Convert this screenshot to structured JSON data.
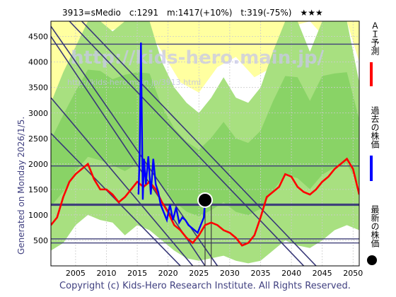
{
  "chart_data": {
    "type": "line",
    "title": "3913=sMedio　c:1291　m:1417(+10%)　t:319(-75%)　★★★",
    "side_note": "Generated on Monday 2026/1/5.",
    "copyright": "Copyright (c) Kids-Hero Research Institute. All Rights Reserved.",
    "watermark": "http://kids-hero.main.jp/",
    "watermark_small": "http://kids-hero.main.jp/3913.html",
    "xlim": [
      2001,
      2051
    ],
    "ylim": [
      0,
      4800
    ],
    "x_ticks": [
      "2005",
      "2010",
      "2015",
      "2020",
      "2025",
      "2030",
      "2035",
      "2040",
      "2045",
      "2050"
    ],
    "y_ticks": [
      "500",
      "1000",
      "1500",
      "2000",
      "2500",
      "3000",
      "3500",
      "4000",
      "4500"
    ],
    "current_point": {
      "x": 2026.0,
      "y": 1291
    },
    "horizontal_lines": [
      4350,
      1960,
      1200,
      530,
      450
    ],
    "diagonal_lines": [
      {
        "x1": 2001,
        "y1": 4700,
        "x2": 2028,
        "y2": 0
      },
      {
        "x1": 2001,
        "y1": 4500,
        "x2": 2026,
        "y2": 0
      },
      {
        "x1": 2004,
        "y1": 4800,
        "x2": 2042,
        "y2": 0
      },
      {
        "x1": 2006,
        "y1": 4800,
        "x2": 2044,
        "y2": 0
      },
      {
        "x1": 2001,
        "y1": 3300,
        "x2": 2024,
        "y2": 0
      },
      {
        "x1": 2001,
        "y1": 2600,
        "x2": 2022,
        "y2": 0
      }
    ],
    "vertical_lines": [
      2026.0,
      2027.0
    ],
    "series": [
      {
        "name": "ＡＩ予測",
        "color": "#ff0000",
        "x": [
          2001,
          2002,
          2003,
          2004,
          2005,
          2006,
          2007,
          2008,
          2009,
          2010,
          2011,
          2012,
          2013,
          2014,
          2015,
          2016,
          2017,
          2018,
          2019,
          2020,
          2021,
          2022,
          2023,
          2024,
          2025,
          2026,
          2027,
          2028,
          2029,
          2030,
          2031,
          2032,
          2033,
          2034,
          2035,
          2036,
          2037,
          2038,
          2039,
          2040,
          2041,
          2042,
          2043,
          2044,
          2045,
          2046,
          2047,
          2048,
          2049,
          2050,
          2051
        ],
        "y": [
          800,
          950,
          1350,
          1650,
          1800,
          1900,
          2000,
          1700,
          1500,
          1500,
          1400,
          1250,
          1350,
          1500,
          1650,
          1550,
          1650,
          1500,
          1250,
          1050,
          800,
          700,
          550,
          450,
          600,
          800,
          850,
          800,
          700,
          650,
          550,
          400,
          450,
          600,
          950,
          1350,
          1450,
          1550,
          1800,
          1750,
          1550,
          1450,
          1400,
          1500,
          1650,
          1750,
          1900,
          2000,
          2100,
          1900,
          1400
        ]
      },
      {
        "name": "過去の株価",
        "color": "#0000ff",
        "x": [
          2015.2,
          2015.4,
          2015.6,
          2015.9,
          2016.1,
          2016.4,
          2016.8,
          2017.2,
          2017.6,
          2018.0,
          2018.4,
          2018.8,
          2019.3,
          2019.8,
          2020.3,
          2020.8,
          2021.3,
          2021.8,
          2022.3,
          2022.8,
          2023.3,
          2023.8,
          2024.3,
          2024.8,
          2025.3,
          2025.8,
          2026.0
        ],
        "y": [
          1400,
          2200,
          4380,
          1300,
          2100,
          1600,
          2150,
          1400,
          2100,
          1600,
          1450,
          1200,
          1050,
          900,
          1200,
          900,
          1150,
          850,
          950,
          900,
          800,
          750,
          700,
          650,
          800,
          950,
          1291
        ]
      },
      {
        "name": "最新の株価",
        "color": "#000000",
        "x": [
          2026.0
        ],
        "y": [
          1291
        ]
      }
    ],
    "green_band": {
      "x": [
        2001,
        2003,
        2005,
        2007,
        2009,
        2011,
        2013,
        2015,
        2017,
        2019,
        2021,
        2023,
        2025,
        2027,
        2029,
        2031,
        2033,
        2035,
        2037,
        2039,
        2041,
        2043,
        2045,
        2047,
        2049,
        2051
      ],
      "upper": [
        3200,
        3800,
        4300,
        4800,
        4800,
        4600,
        4800,
        4800,
        4800,
        4000,
        3500,
        3200,
        3000,
        3300,
        3700,
        3300,
        3200,
        3500,
        4200,
        4800,
        4800,
        4200,
        4800,
        4800,
        4800,
        3600
      ],
      "lower": [
        300,
        450,
        800,
        1000,
        900,
        850,
        600,
        800,
        700,
        500,
        300,
        150,
        100,
        150,
        200,
        100,
        50,
        100,
        300,
        500,
        400,
        350,
        500,
        700,
        800,
        700
      ]
    },
    "yellow_band": {
      "x": [
        2001,
        2004,
        2007,
        2010,
        2013,
        2016,
        2019,
        2022,
        2025,
        2028,
        2031,
        2034,
        2037,
        2040,
        2043,
        2046,
        2049,
        2051
      ],
      "upper": [
        4800,
        4800,
        4800,
        4800,
        4800,
        4800,
        4800,
        4800,
        4800,
        4800,
        4800,
        4800,
        4800,
        4800,
        4800,
        4800,
        4800,
        4800
      ],
      "lower": [
        2800,
        3500,
        4200,
        4600,
        4700,
        4800,
        4200,
        3600,
        3400,
        3900,
        4100,
        3700,
        3900,
        4700,
        4800,
        4400,
        4800,
        4000
      ]
    },
    "legend": [
      {
        "label": "ＡＩ予測",
        "color": "#ff0000",
        "marker": "line"
      },
      {
        "label": "過去の株価",
        "color": "#0000ff",
        "marker": "line"
      },
      {
        "label": "最新の株価",
        "color": "#000000",
        "marker": "dot"
      }
    ],
    "grid": true,
    "legend_placement": "right"
  }
}
